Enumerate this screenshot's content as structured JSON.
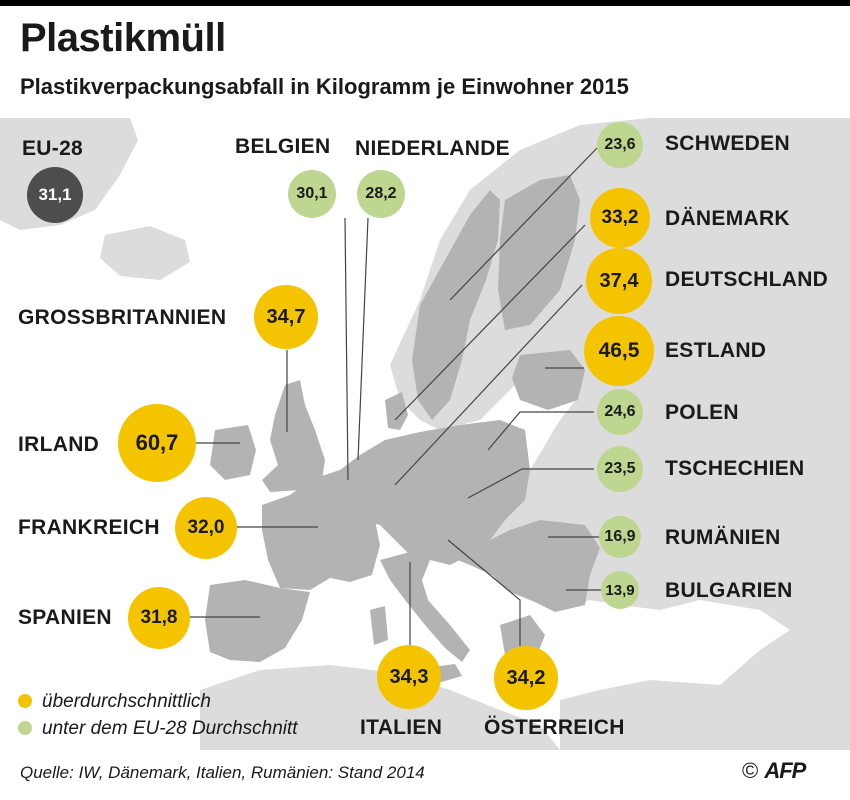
{
  "title": "Plastikmüll",
  "subtitle": "Plastikverpackungsabfall in Kilogramm je Einwohner 2015",
  "colors": {
    "above": "#f5c400",
    "below": "#bfd690",
    "eu_average": "#4d4d4d",
    "land": "#b3b3b3",
    "land_bg": "#dcdcdc",
    "sea": "#ffffff"
  },
  "eu28": {
    "label": "EU-28",
    "value": "31,1"
  },
  "countries": {
    "belgien": {
      "label": "BELGIEN",
      "value": "30,1"
    },
    "niederlande": {
      "label": "NIEDERLANDE",
      "value": "28,2"
    },
    "schweden": {
      "label": "SCHWEDEN",
      "value": "23,6"
    },
    "daenemark": {
      "label": "DÄNEMARK",
      "value": "33,2"
    },
    "deutschland": {
      "label": "DEUTSCHLAND",
      "value": "37,4"
    },
    "grossbritannien": {
      "label": "GROSSBRITANNIEN",
      "value": "34,7"
    },
    "estland": {
      "label": "ESTLAND",
      "value": "46,5"
    },
    "polen": {
      "label": "POLEN",
      "value": "24,6"
    },
    "irland": {
      "label": "IRLAND",
      "value": "60,7"
    },
    "tschechien": {
      "label": "TSCHECHIEN",
      "value": "23,5"
    },
    "frankreich": {
      "label": "FRANKREICH",
      "value": "32,0"
    },
    "rumaenien": {
      "label": "RUMÄNIEN",
      "value": "16,9"
    },
    "bulgarien": {
      "label": "BULGARIEN",
      "value": "13,9"
    },
    "spanien": {
      "label": "SPANIEN",
      "value": "31,8"
    },
    "italien": {
      "label": "ITALIEN",
      "value": "34,3"
    },
    "oesterreich": {
      "label": "ÖSTERREICH",
      "value": "34,2"
    }
  },
  "legend": {
    "above": "überdurchschnittlich",
    "below": "unter dem EU-28 Durchschnitt"
  },
  "source": "Quelle: IW, Dänemark, Italien, Rumänien: Stand 2014",
  "credit": {
    "copyright": "©",
    "agency": "AFP"
  }
}
